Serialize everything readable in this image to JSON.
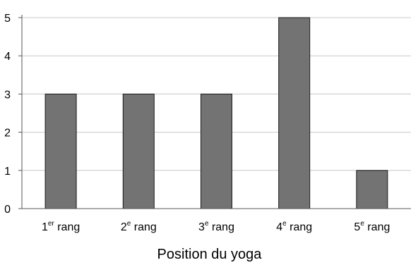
{
  "chart_data": {
    "type": "bar",
    "categories": [
      {
        "base": "1",
        "sup": "er",
        "rest": " rang"
      },
      {
        "base": "2",
        "sup": "e",
        "rest": " rang"
      },
      {
        "base": "3",
        "sup": "e",
        "rest": " rang"
      },
      {
        "base": "4",
        "sup": "e",
        "rest": " rang"
      },
      {
        "base": "5",
        "sup": "e",
        "rest": " rang"
      }
    ],
    "values": [
      3,
      3,
      3,
      5,
      1
    ],
    "xlabel": "Position du yoga",
    "ylabel": "",
    "ylim": [
      0,
      5
    ],
    "yticks": [
      "0",
      "1",
      "2",
      "3",
      "4",
      "5"
    ],
    "grid": true,
    "bar_color": "#737373",
    "bar_stroke": "#1a1a1a",
    "grid_color": "#c8c8c8"
  }
}
